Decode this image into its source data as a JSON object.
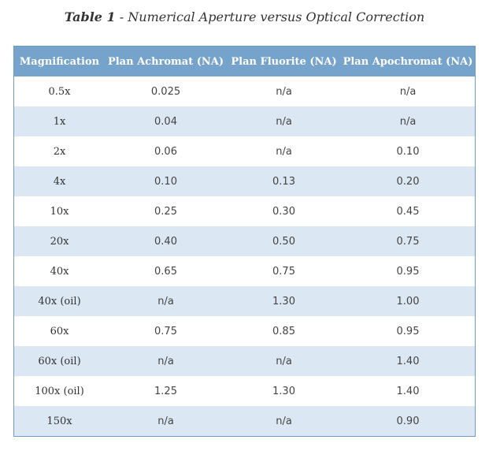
{
  "caption": {
    "label": "Table 1",
    "text": " - Numerical Aperture versus Optical Correction"
  },
  "table": {
    "headers": [
      "Magnification",
      "Plan Achromat (NA)",
      "Plan Fluorite (NA)",
      "Plan Apochromat (NA)"
    ],
    "rows": [
      [
        "0.5x",
        "0.025",
        "n/a",
        "n/a"
      ],
      [
        "1x",
        "0.04",
        "n/a",
        "n/a"
      ],
      [
        "2x",
        "0.06",
        "n/a",
        "0.10"
      ],
      [
        "4x",
        "0.10",
        "0.13",
        "0.20"
      ],
      [
        "10x",
        "0.25",
        "0.30",
        "0.45"
      ],
      [
        "20x",
        "0.40",
        "0.50",
        "0.75"
      ],
      [
        "40x",
        "0.65",
        "0.75",
        "0.95"
      ],
      [
        "40x (oil)",
        "n/a",
        "1.30",
        "1.00"
      ],
      [
        "60x",
        "0.75",
        "0.85",
        "0.95"
      ],
      [
        "60x (oil)",
        "n/a",
        "n/a",
        "1.40"
      ],
      [
        "100x (oil)",
        "1.25",
        "1.30",
        "1.40"
      ],
      [
        "150x",
        "n/a",
        "n/a",
        "0.90"
      ]
    ]
  }
}
